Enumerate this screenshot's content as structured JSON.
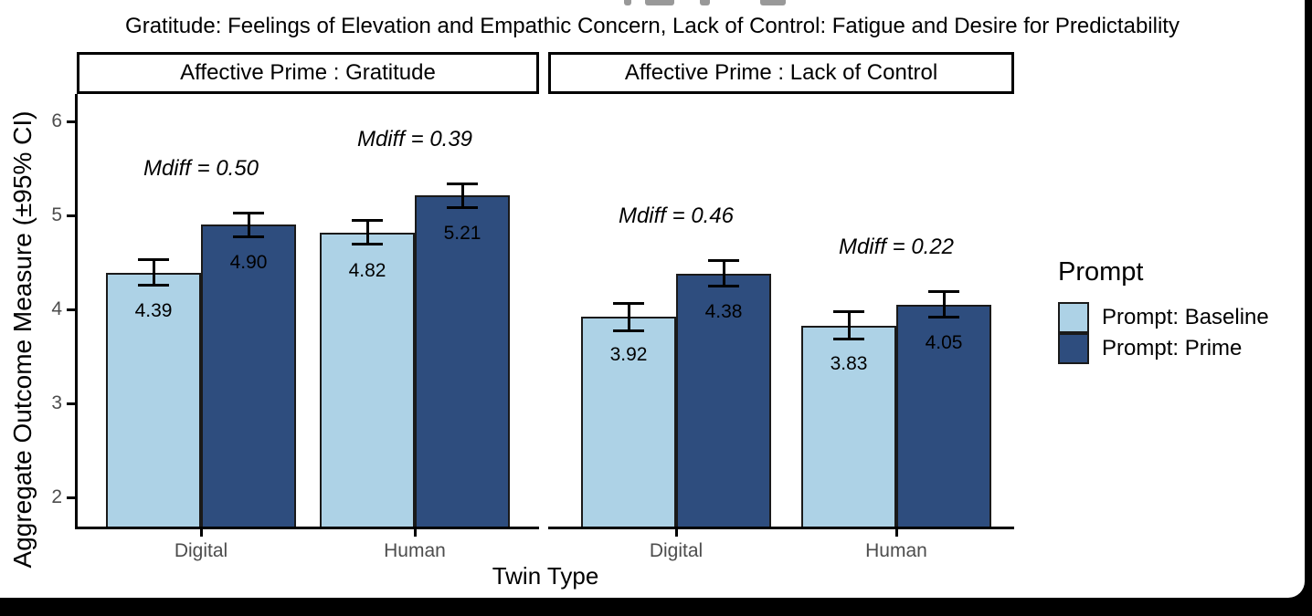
{
  "chart_data": {
    "type": "bar",
    "subtitle": "Gratitude: Feelings of Elevation and Empathic Concern, Lack of Control: Fatigue and Desire for Predictability",
    "xlabel": "Twin Type",
    "ylabel": "Aggregate Outcome Measure (±95% CI)",
    "ylim": [
      1.69,
      6.29
    ],
    "yticks": [
      2,
      3,
      4,
      5,
      6
    ],
    "categories": [
      "Digital",
      "Human"
    ],
    "series_names": [
      "Prompt: Baseline",
      "Prompt: Prime"
    ],
    "grid": "off",
    "error_bars": "±95% CI",
    "facets": [
      {
        "label": "Affective Prime : Gratitude",
        "groups": [
          {
            "category": "Digital",
            "mdiff_label": "Mdiff = 0.50",
            "bars": [
              {
                "series": "Prompt: Baseline",
                "value": 4.39,
                "label": "4.39",
                "ci": 0.14
              },
              {
                "series": "Prompt: Prime",
                "value": 4.9,
                "label": "4.90",
                "ci": 0.13
              }
            ]
          },
          {
            "category": "Human",
            "mdiff_label": "Mdiff = 0.39",
            "bars": [
              {
                "series": "Prompt: Baseline",
                "value": 4.82,
                "label": "4.82",
                "ci": 0.13
              },
              {
                "series": "Prompt: Prime",
                "value": 5.21,
                "label": "5.21",
                "ci": 0.13
              }
            ]
          }
        ]
      },
      {
        "label": "Affective Prime : Lack of Control",
        "groups": [
          {
            "category": "Digital",
            "mdiff_label": "Mdiff = 0.46",
            "bars": [
              {
                "series": "Prompt: Baseline",
                "value": 3.92,
                "label": "3.92",
                "ci": 0.15
              },
              {
                "series": "Prompt: Prime",
                "value": 4.38,
                "label": "4.38",
                "ci": 0.14
              }
            ]
          },
          {
            "category": "Human",
            "mdiff_label": "Mdiff = 0.22",
            "bars": [
              {
                "series": "Prompt: Baseline",
                "value": 3.83,
                "label": "3.83",
                "ci": 0.15
              },
              {
                "series": "Prompt: Prime",
                "value": 4.05,
                "label": "4.05",
                "ci": 0.14
              }
            ]
          }
        ]
      }
    ],
    "legend": {
      "title": "Prompt",
      "position": "right",
      "items": [
        {
          "label": "Prompt: Baseline",
          "color": "#ADD2E6"
        },
        {
          "label": "Prompt: Prime",
          "color": "#2E4D7E"
        }
      ]
    },
    "colors": {
      "bar_border": "#1a1a1a",
      "axis_line": "#000000",
      "axis_text": "#4d4d4d",
      "strip_background": "#ffffff",
      "panel_background": "#ffffff"
    }
  }
}
